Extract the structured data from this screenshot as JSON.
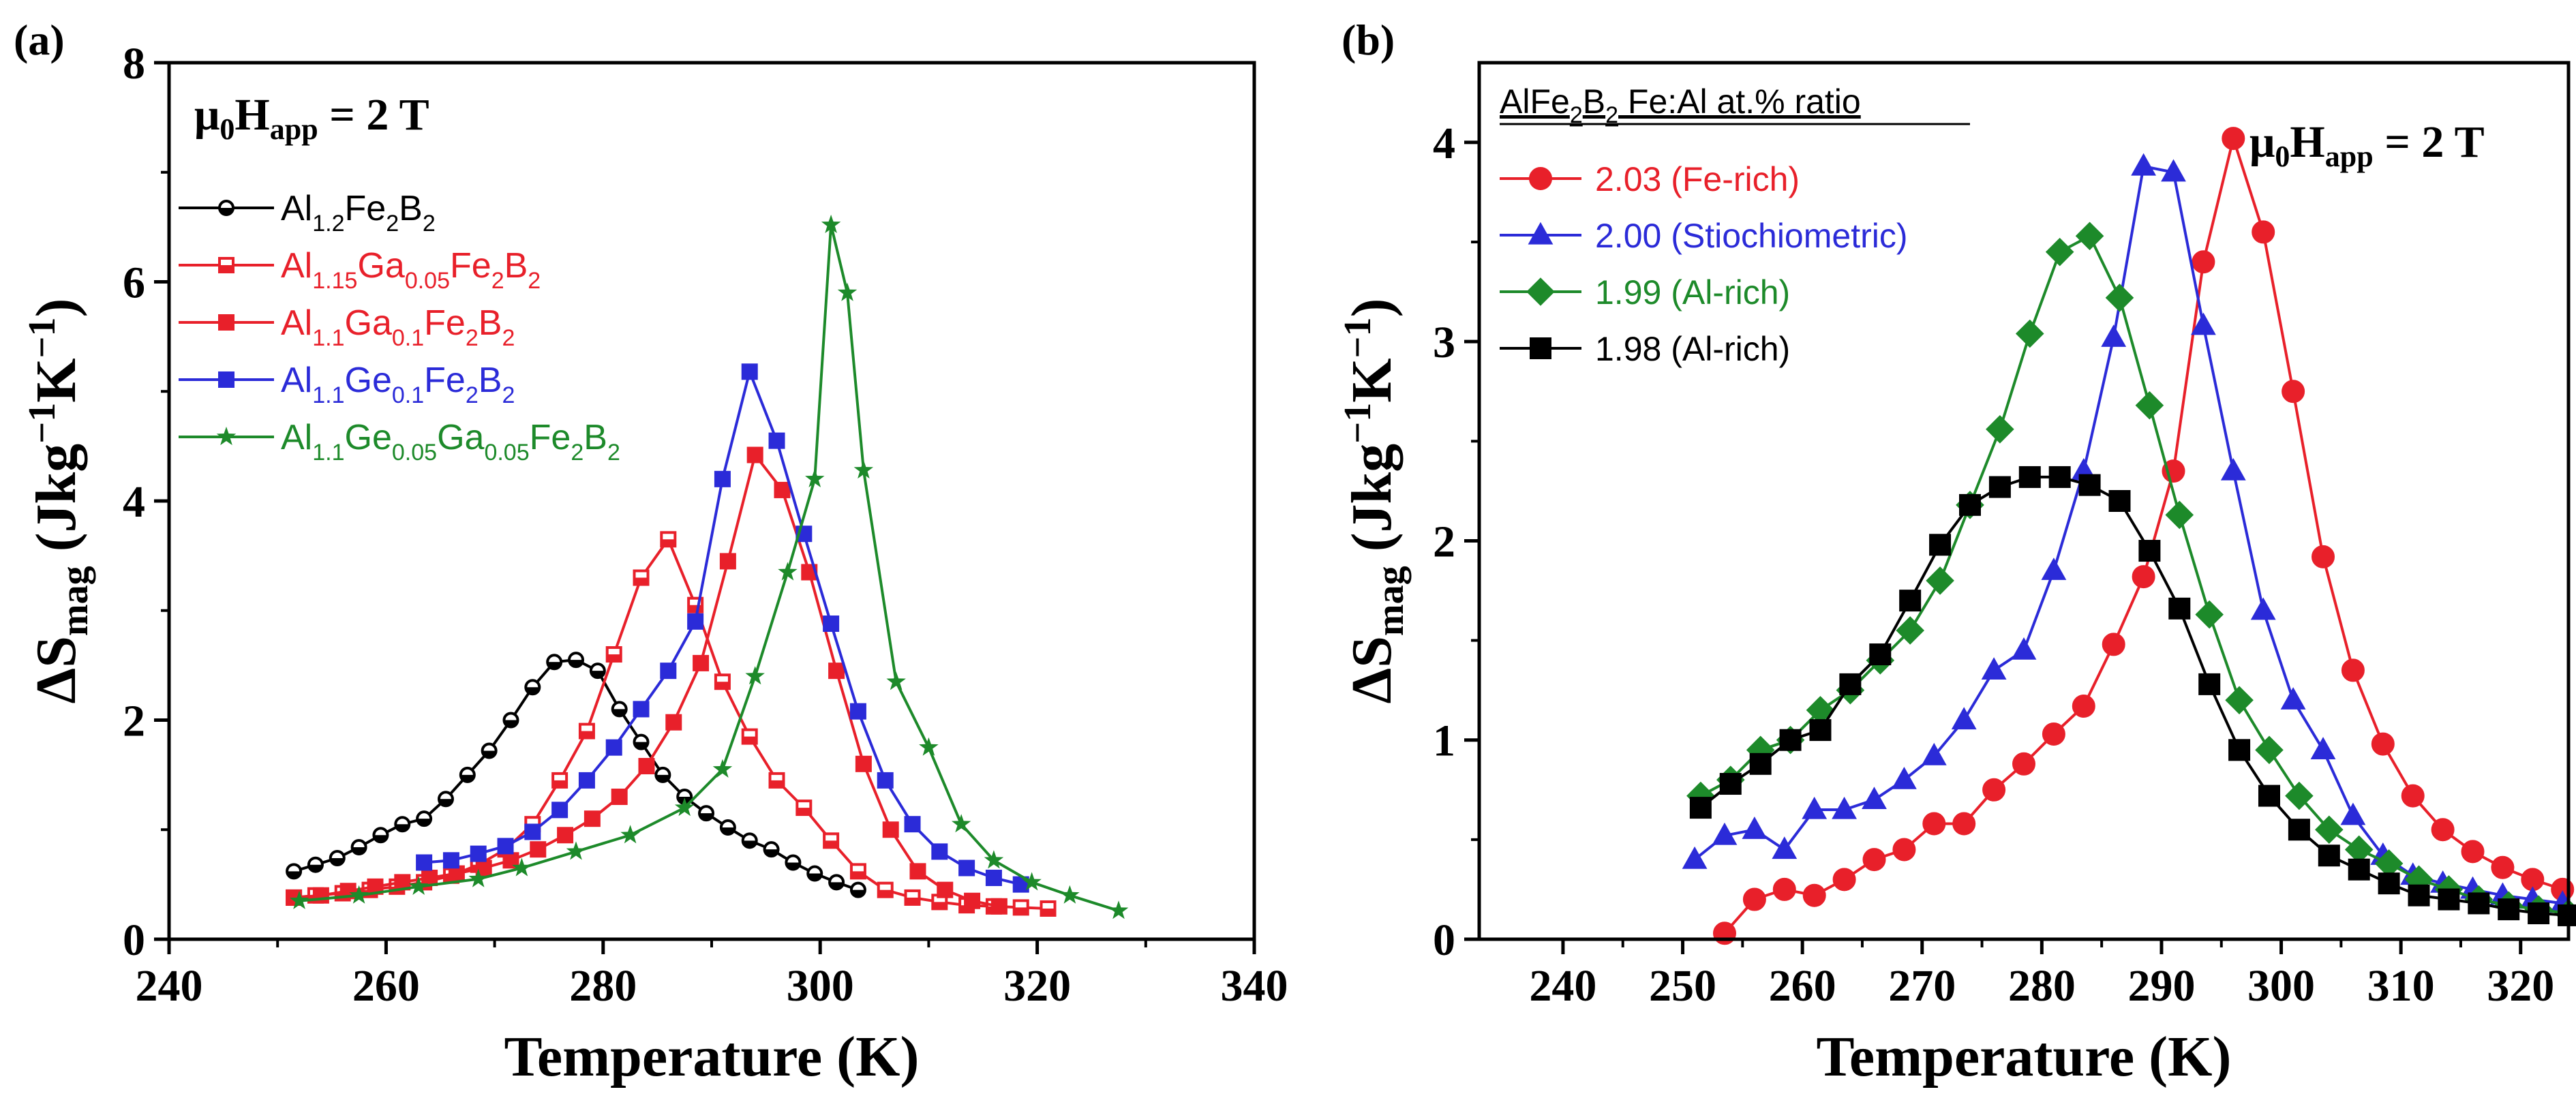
{
  "chart_data": [
    {
      "id": "a",
      "type": "line",
      "panel_label": "(a)",
      "annotation": "μ0Happ = 2 T",
      "xlabel": "Temperature (K)",
      "ylabel": "ΔSmag (Jkg−1K−1)",
      "xlim": [
        240,
        340
      ],
      "ylim": [
        0,
        8
      ],
      "xticks": [
        240,
        260,
        280,
        300,
        320,
        340
      ],
      "yticks": [
        0,
        2,
        4,
        6,
        8
      ],
      "legend_position": "top-left",
      "series": [
        {
          "name": "Al1.2Fe2B2",
          "color": "#000000",
          "marker": "circle-half",
          "x": [
            251.5,
            253.5,
            255.5,
            257.5,
            259.5,
            261.5,
            263.5,
            265.5,
            267.5,
            269.5,
            271.5,
            273.5,
            275.5,
            277.5,
            279.5,
            281.5,
            283.5,
            285.5,
            287.5,
            289.5,
            291.5,
            293.5,
            295.5,
            297.5,
            299.5,
            301.5,
            303.5
          ],
          "y": [
            0.62,
            0.68,
            0.74,
            0.84,
            0.95,
            1.05,
            1.1,
            1.28,
            1.5,
            1.72,
            2.0,
            2.3,
            2.53,
            2.55,
            2.45,
            2.1,
            1.8,
            1.5,
            1.3,
            1.15,
            1.02,
            0.9,
            0.82,
            0.7,
            0.6,
            0.52,
            0.45
          ]
        },
        {
          "name": "Al1.15Ga0.05Fe2B2",
          "color": "#e8202a",
          "marker": "square-half",
          "x": [
            251.5,
            253.5,
            256,
            258.5,
            261,
            263.5,
            266,
            268.5,
            271,
            273.5,
            276,
            278.5,
            281,
            283.5,
            286,
            288.5,
            291,
            293.5,
            296,
            298.5,
            301,
            303.5,
            306,
            308.5,
            311,
            313.5,
            316,
            318.5,
            321
          ],
          "y": [
            0.38,
            0.4,
            0.42,
            0.45,
            0.48,
            0.52,
            0.58,
            0.68,
            0.82,
            1.05,
            1.45,
            1.9,
            2.6,
            3.3,
            3.65,
            3.05,
            2.35,
            1.85,
            1.45,
            1.2,
            0.9,
            0.62,
            0.45,
            0.38,
            0.34,
            0.31,
            0.3,
            0.29,
            0.28
          ]
        },
        {
          "name": "Al1.1Ga0.1Fe2B2",
          "color": "#e8202a",
          "marker": "square",
          "x": [
            251.5,
            254,
            256.5,
            259,
            261.5,
            264,
            266.5,
            269,
            271.5,
            274,
            276.5,
            279,
            281.5,
            284,
            286.5,
            289,
            291.5,
            294,
            296.5,
            299,
            301.5,
            304,
            306.5,
            309,
            311.5,
            314,
            316.5
          ],
          "y": [
            0.38,
            0.4,
            0.44,
            0.48,
            0.52,
            0.56,
            0.6,
            0.65,
            0.72,
            0.82,
            0.95,
            1.1,
            1.3,
            1.58,
            1.98,
            2.52,
            3.45,
            4.42,
            4.1,
            3.35,
            2.45,
            1.6,
            1.0,
            0.62,
            0.45,
            0.35,
            0.3
          ]
        },
        {
          "name": "Al1.1Ge0.1Fe2B2",
          "color": "#2b2bd8",
          "marker": "square",
          "x": [
            263.5,
            266,
            268.5,
            271,
            273.5,
            276,
            278.5,
            281,
            283.5,
            286,
            288.5,
            291,
            293.5,
            296,
            298.5,
            301,
            303.5,
            306,
            308.5,
            311,
            313.5,
            316,
            318.5
          ],
          "y": [
            0.7,
            0.72,
            0.78,
            0.85,
            0.98,
            1.18,
            1.45,
            1.75,
            2.1,
            2.45,
            2.9,
            4.2,
            5.18,
            4.55,
            3.7,
            2.88,
            2.08,
            1.45,
            1.05,
            0.8,
            0.65,
            0.56,
            0.5
          ]
        },
        {
          "name": "Al1.1Ge0.05Ga0.05Fe2B2",
          "color": "#1d8a2a",
          "marker": "star",
          "x": [
            252,
            257.5,
            263,
            268.5,
            272.5,
            277.5,
            282.5,
            287.5,
            291,
            294,
            297,
            299.5,
            301,
            302.5,
            304,
            307,
            310,
            313,
            316,
            319.5,
            323,
            327.5
          ],
          "y": [
            0.35,
            0.4,
            0.48,
            0.55,
            0.65,
            0.8,
            0.95,
            1.2,
            1.55,
            2.4,
            3.35,
            4.2,
            6.52,
            5.9,
            4.28,
            2.35,
            1.75,
            1.05,
            0.72,
            0.52,
            0.4,
            0.26
          ]
        }
      ]
    },
    {
      "id": "b",
      "type": "line",
      "panel_label": "(b)",
      "annotation": "μ0Happ = 2 T",
      "legend_title": "AlFe2B2 Fe:Al at.% ratio",
      "xlabel": "Temperature (K)",
      "ylabel": "ΔSmag (Jkg−1K−1)",
      "xlim": [
        233,
        324
      ],
      "ylim": [
        0,
        4.4
      ],
      "xticks": [
        240,
        250,
        260,
        270,
        280,
        290,
        300,
        310,
        320
      ],
      "yticks": [
        0,
        1,
        2,
        3,
        4
      ],
      "legend_position": "top-left",
      "series": [
        {
          "name": "2.03 (Fe-rich)",
          "color": "#e8202a",
          "marker": "circle",
          "x": [
            253.5,
            256,
            258.5,
            261,
            263.5,
            266,
            268.5,
            271,
            273.5,
            276,
            278.5,
            281,
            283.5,
            286,
            288.5,
            291,
            293.5,
            296,
            298.5,
            301,
            303.5,
            306,
            308.5,
            311,
            313.5,
            316,
            318.5,
            321,
            323.5
          ],
          "y": [
            0.03,
            0.2,
            0.25,
            0.22,
            0.3,
            0.4,
            0.45,
            0.58,
            0.58,
            0.75,
            0.88,
            1.03,
            1.17,
            1.48,
            1.82,
            2.35,
            3.4,
            4.02,
            3.55,
            2.75,
            1.92,
            1.35,
            0.98,
            0.72,
            0.55,
            0.44,
            0.36,
            0.3,
            0.25
          ]
        },
        {
          "name": "2.00 (Stiochiometric)",
          "color": "#2b2bd8",
          "marker": "triangle",
          "x": [
            251,
            253.5,
            256,
            258.5,
            261,
            263.5,
            266,
            268.5,
            271,
            273.5,
            276,
            278.5,
            281,
            283.5,
            286,
            288.5,
            291,
            293.5,
            296,
            298.5,
            301,
            303.5,
            306,
            308.5,
            311,
            313.5,
            316,
            318.5,
            321,
            323.5
          ],
          "y": [
            0.4,
            0.52,
            0.55,
            0.45,
            0.65,
            0.65,
            0.7,
            0.8,
            0.92,
            1.1,
            1.35,
            1.45,
            1.85,
            2.35,
            3.02,
            3.88,
            3.85,
            3.08,
            2.35,
            1.65,
            1.2,
            0.95,
            0.62,
            0.42,
            0.32,
            0.28,
            0.25,
            0.22,
            0.2,
            0.18
          ]
        },
        {
          "name": "1.99 (Al-rich)",
          "color": "#1d8a2a",
          "marker": "diamond",
          "x": [
            251.5,
            254,
            256.5,
            259,
            261.5,
            264,
            266.5,
            269,
            271.5,
            274,
            276.5,
            279,
            281.5,
            284,
            286.5,
            289,
            291.5,
            294,
            296.5,
            299,
            301.5,
            304,
            306.5,
            309,
            311.5,
            314,
            316.5,
            319,
            321.5,
            324
          ],
          "y": [
            0.72,
            0.8,
            0.95,
            1.0,
            1.15,
            1.25,
            1.4,
            1.55,
            1.8,
            2.18,
            2.56,
            3.04,
            3.45,
            3.53,
            3.22,
            2.68,
            2.13,
            1.63,
            1.2,
            0.95,
            0.72,
            0.55,
            0.45,
            0.38,
            0.3,
            0.25,
            0.2,
            0.17,
            0.15,
            0.13
          ]
        },
        {
          "name": "1.98 (Al-rich)",
          "color": "#000000",
          "marker": "square",
          "x": [
            251.5,
            254,
            256.5,
            259,
            261.5,
            264,
            266.5,
            269,
            271.5,
            274,
            276.5,
            279,
            281.5,
            284,
            286.5,
            289,
            291.5,
            294,
            296.5,
            299,
            301.5,
            304,
            306.5,
            309,
            311.5,
            314,
            316.5,
            319,
            321.5,
            324
          ],
          "y": [
            0.66,
            0.78,
            0.88,
            1.0,
            1.05,
            1.28,
            1.43,
            1.7,
            1.98,
            2.18,
            2.27,
            2.32,
            2.32,
            2.28,
            2.2,
            1.95,
            1.66,
            1.28,
            0.95,
            0.72,
            0.55,
            0.42,
            0.35,
            0.28,
            0.22,
            0.2,
            0.18,
            0.15,
            0.13,
            0.12
          ]
        }
      ]
    }
  ]
}
